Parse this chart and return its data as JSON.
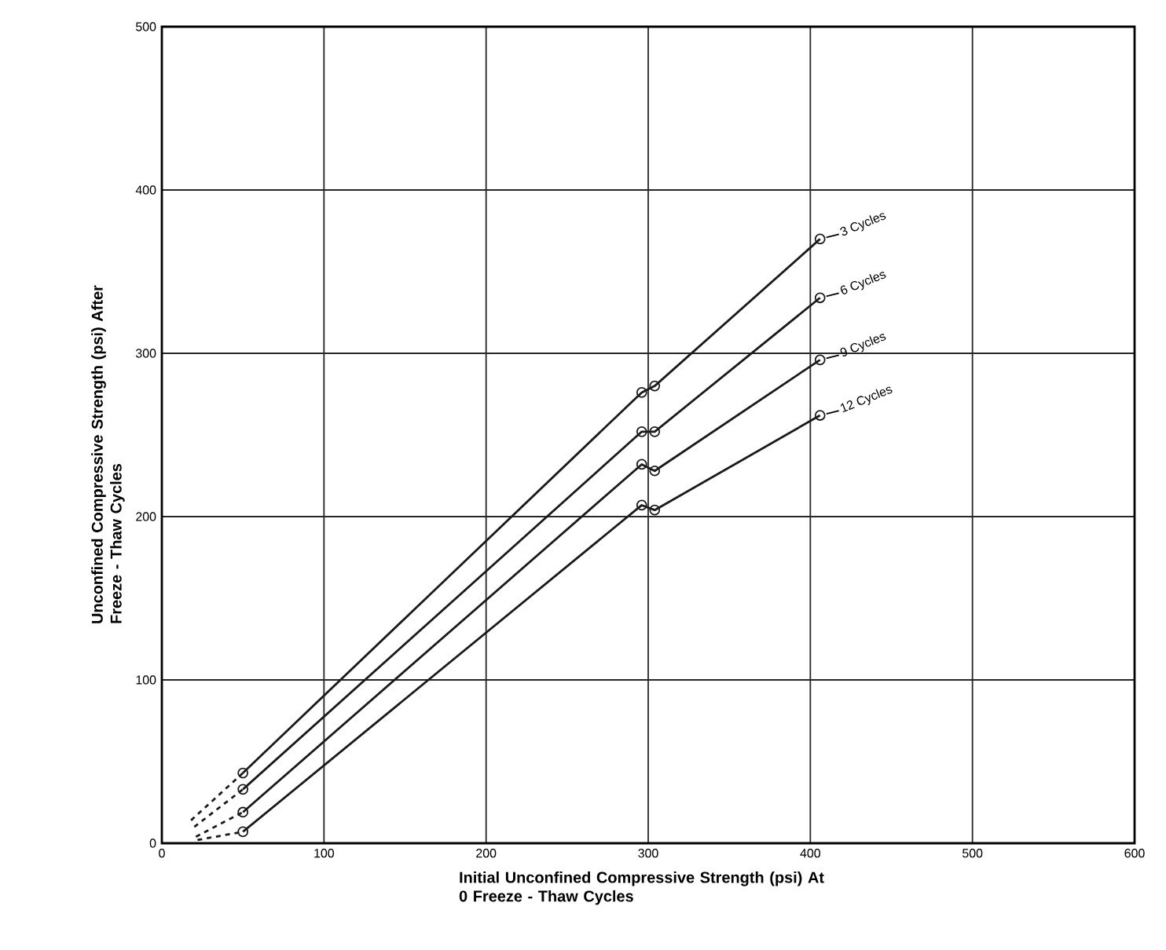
{
  "chart_data": {
    "type": "line",
    "xlabel": "Initial Unconfined Compressive Strength (psi) At 0 Freeze - Thaw Cycles",
    "ylabel": "Unconfined Compressive Strength (psi) After Freeze - Thaw Cycles",
    "xlim": [
      0,
      600
    ],
    "ylim": [
      0,
      500
    ],
    "xticks": [
      0,
      100,
      200,
      300,
      400,
      500,
      600
    ],
    "yticks": [
      0,
      100,
      200,
      300,
      400,
      500
    ],
    "grid": true,
    "marker": "circle",
    "series": [
      {
        "name": "3 Cycles",
        "color": "#1a1a1a",
        "x": [
          50,
          296,
          304,
          406
        ],
        "values": [
          43,
          276,
          280,
          370
        ]
      },
      {
        "name": "6 Cycles",
        "color": "#1a1a1a",
        "x": [
          50,
          296,
          304,
          406
        ],
        "values": [
          33,
          252,
          252,
          334
        ]
      },
      {
        "name": "9 Cycles",
        "color": "#1a1a1a",
        "x": [
          50,
          296,
          304,
          406
        ],
        "values": [
          19,
          232,
          228,
          296
        ]
      },
      {
        "name": "12 Cycles",
        "color": "#1a1a1a",
        "x": [
          50,
          296,
          304,
          406
        ],
        "values": [
          7,
          207,
          204,
          262
        ]
      },
      {
        "color": "#1a1a1a",
        "line_style": "dashed",
        "marker": "none",
        "x": [
          18,
          50
        ],
        "values": [
          14,
          43
        ]
      },
      {
        "color": "#1a1a1a",
        "line_style": "dashed",
        "marker": "none",
        "x": [
          20,
          50
        ],
        "values": [
          10,
          33
        ]
      },
      {
        "color": "#1a1a1a",
        "line_style": "dashed",
        "marker": "none",
        "x": [
          21,
          50
        ],
        "values": [
          4,
          19
        ]
      },
      {
        "color": "#1a1a1a",
        "line_style": "dashed",
        "marker": "none",
        "x": [
          22,
          50
        ],
        "values": [
          2,
          7
        ]
      }
    ]
  }
}
